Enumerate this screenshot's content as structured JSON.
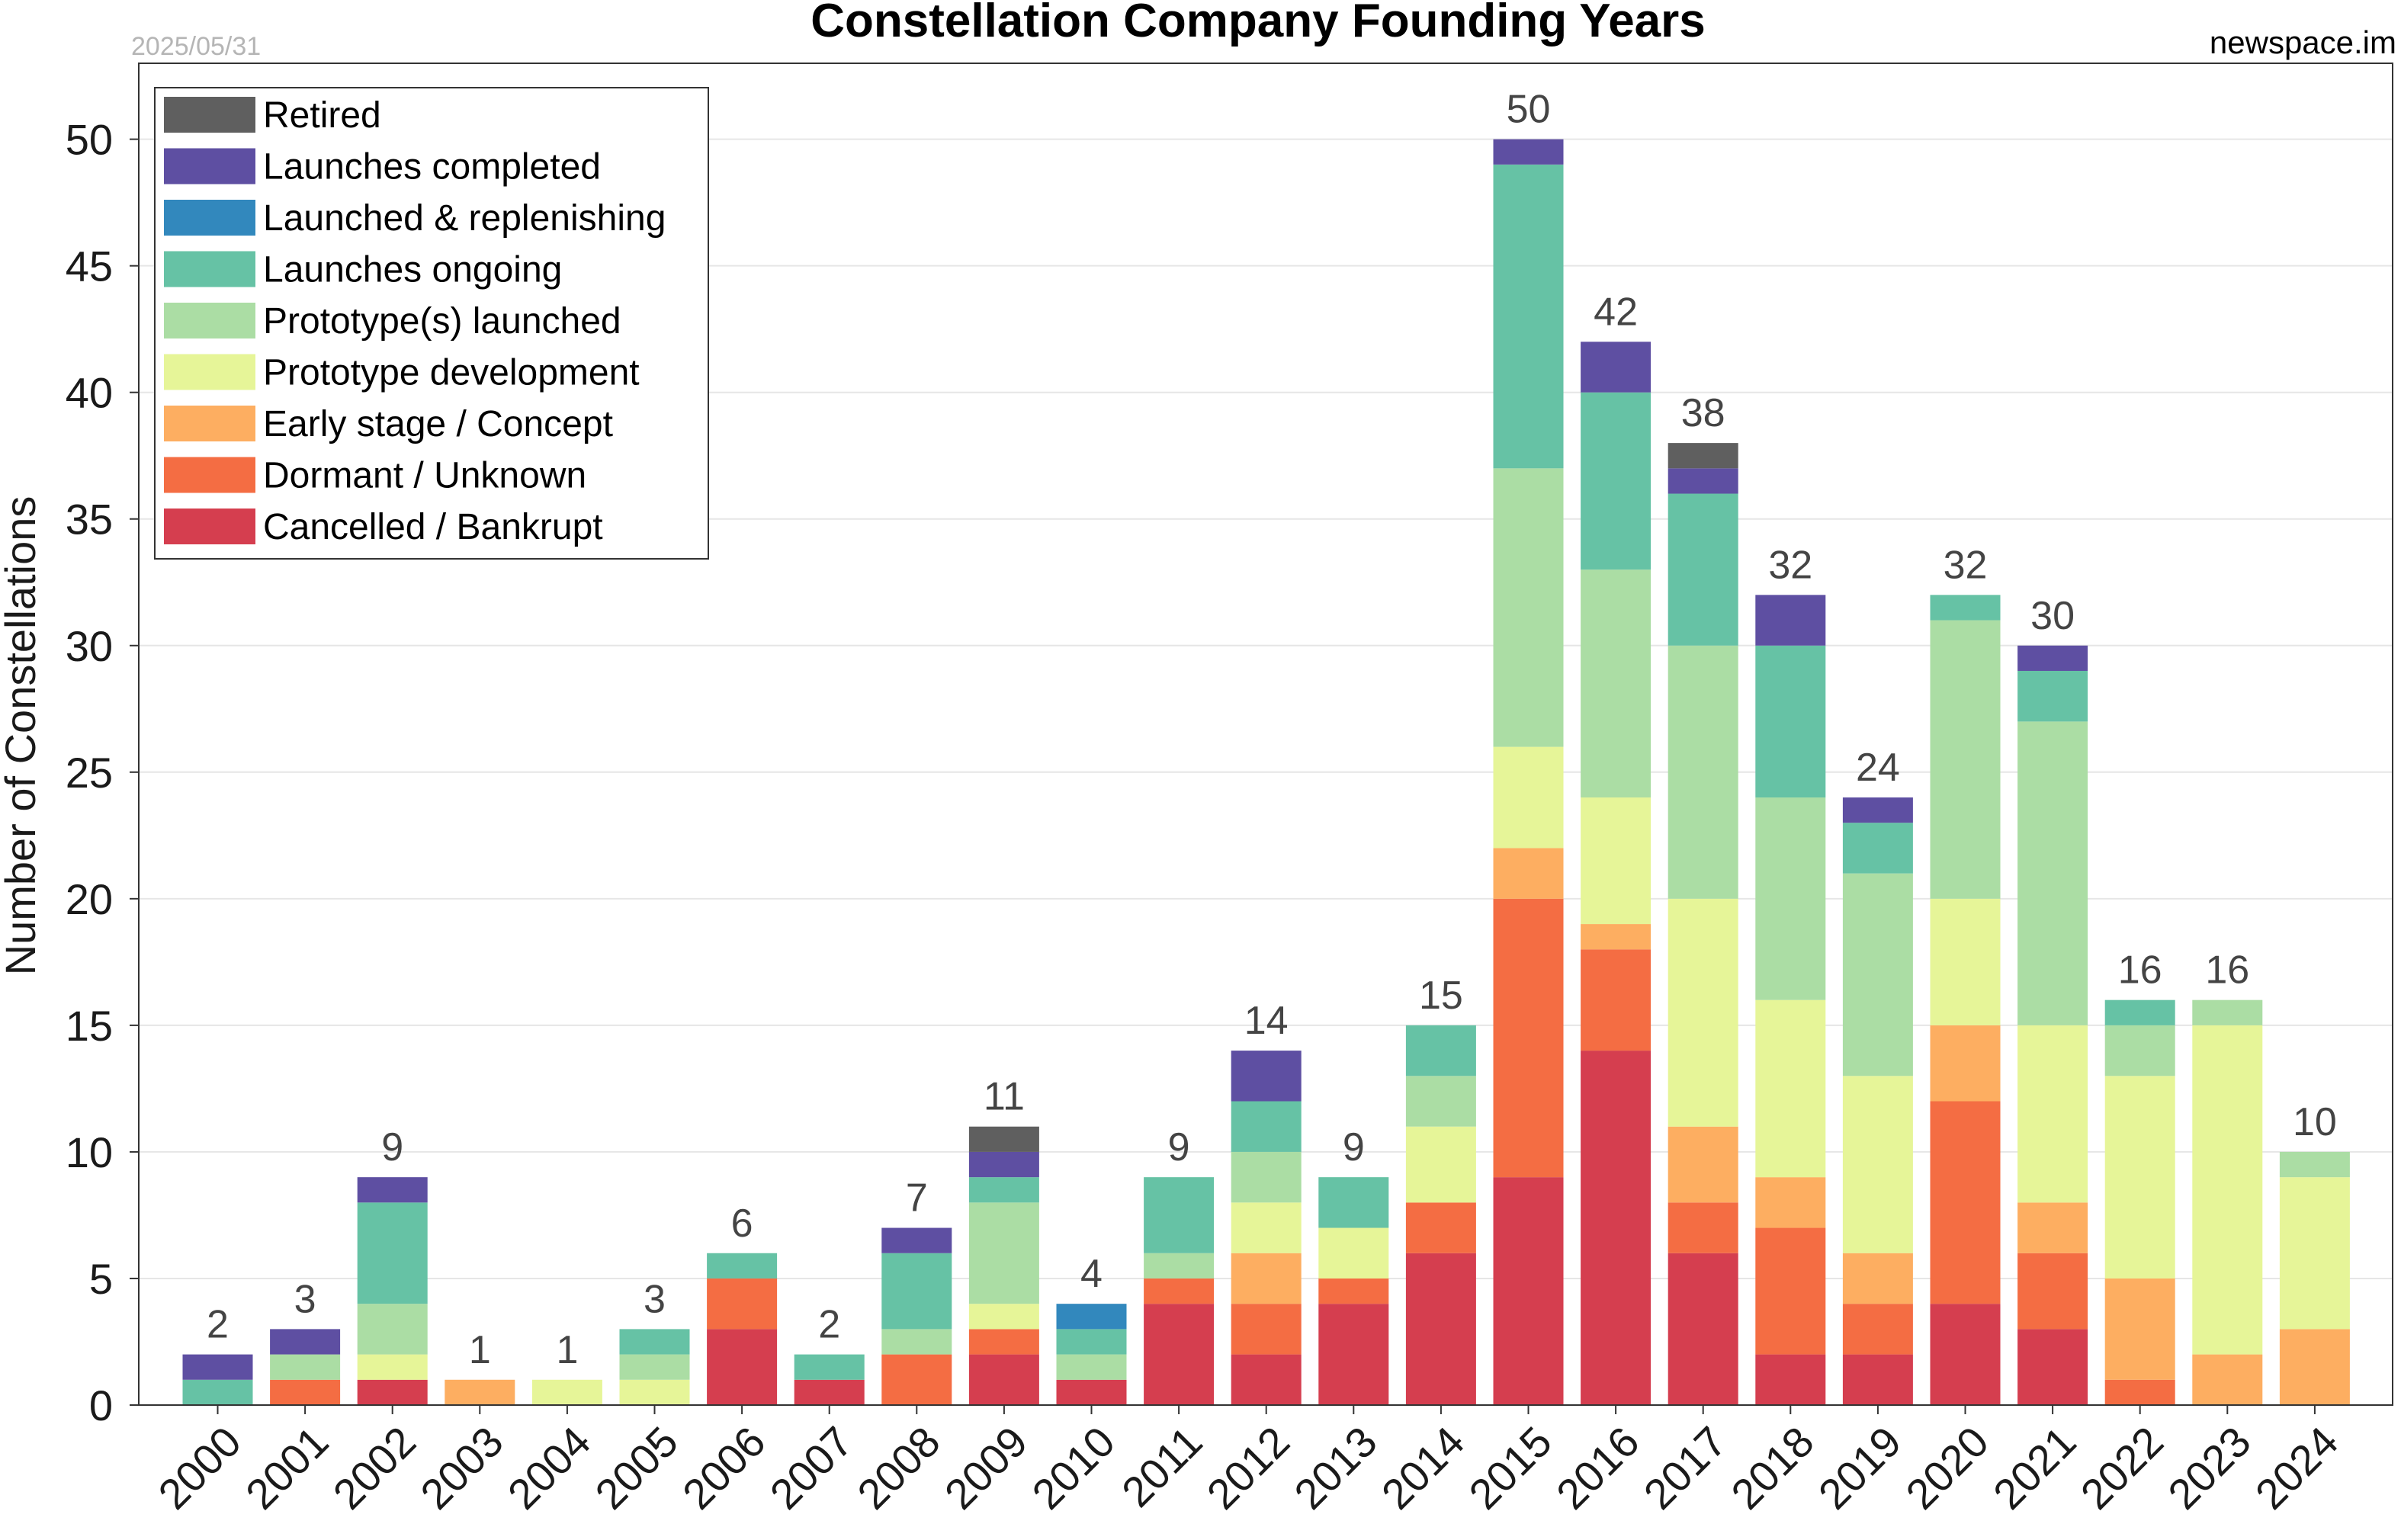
{
  "header": {
    "title": "Constellation Company Founding Years",
    "date": "2025/05/31",
    "source": "newspace.im"
  },
  "chart_data": {
    "type": "bar",
    "stacked": true,
    "title": "Constellation Company Founding Years",
    "xlabel": "",
    "ylabel": "Number of Constellations",
    "ylim": [
      0,
      53
    ],
    "yticks": [
      "0",
      "5",
      "10",
      "15",
      "20",
      "25",
      "30",
      "35",
      "40",
      "45",
      "50"
    ],
    "grid": "horizontal",
    "legend_position": "top-left",
    "categories": [
      "2000",
      "2001",
      "2002",
      "2003",
      "2004",
      "2005",
      "2006",
      "2007",
      "2008",
      "2009",
      "2010",
      "2011",
      "2012",
      "2013",
      "2014",
      "2015",
      "2016",
      "2017",
      "2018",
      "2019",
      "2020",
      "2021",
      "2022",
      "2023",
      "2024"
    ],
    "totals": [
      "2",
      "3",
      "9",
      "1",
      "1",
      "3",
      "6",
      "2",
      "7",
      "11",
      "4",
      "9",
      "14",
      "9",
      "15",
      "50",
      "42",
      "38",
      "32",
      "24",
      "32",
      "30",
      "16",
      "16",
      "10"
    ],
    "series": [
      {
        "name": "Cancelled / Bankrupt",
        "color": "#d53e4f",
        "values": [
          0,
          0,
          1,
          0,
          0,
          0,
          3,
          1,
          0,
          2,
          1,
          4,
          2,
          4,
          6,
          9,
          14,
          6,
          2,
          2,
          4,
          3,
          0,
          0,
          0
        ]
      },
      {
        "name": "Dormant / Unknown",
        "color": "#f46d43",
        "values": [
          0,
          1,
          0,
          0,
          0,
          0,
          2,
          0,
          2,
          1,
          0,
          1,
          2,
          1,
          2,
          11,
          4,
          2,
          5,
          2,
          8,
          3,
          1,
          0,
          0
        ]
      },
      {
        "name": "Early stage / Concept",
        "color": "#fdae61",
        "values": [
          0,
          0,
          0,
          1,
          0,
          0,
          0,
          0,
          0,
          0,
          0,
          0,
          2,
          0,
          0,
          2,
          1,
          3,
          2,
          2,
          3,
          2,
          4,
          2,
          3
        ]
      },
      {
        "name": "Prototype development",
        "color": "#e6f598",
        "values": [
          0,
          0,
          1,
          0,
          1,
          1,
          0,
          0,
          0,
          1,
          0,
          0,
          2,
          2,
          3,
          4,
          5,
          9,
          7,
          7,
          5,
          7,
          8,
          13,
          6
        ]
      },
      {
        "name": "Prototype(s) launched",
        "color": "#abdda4",
        "values": [
          0,
          1,
          2,
          0,
          0,
          1,
          0,
          0,
          1,
          4,
          1,
          1,
          2,
          0,
          2,
          11,
          9,
          10,
          8,
          8,
          11,
          12,
          2,
          1,
          1
        ]
      },
      {
        "name": "Launches ongoing",
        "color": "#66c2a5",
        "values": [
          1,
          0,
          4,
          0,
          0,
          1,
          1,
          1,
          3,
          1,
          1,
          3,
          2,
          2,
          2,
          12,
          7,
          6,
          6,
          2,
          1,
          2,
          1,
          0,
          0
        ]
      },
      {
        "name": "Launched & replenishing",
        "color": "#3288bd",
        "values": [
          0,
          0,
          0,
          0,
          0,
          0,
          0,
          0,
          0,
          0,
          1,
          0,
          0,
          0,
          0,
          0,
          0,
          0,
          0,
          0,
          0,
          0,
          0,
          0,
          0
        ]
      },
      {
        "name": "Launches completed",
        "color": "#5e4fa2",
        "values": [
          1,
          1,
          1,
          0,
          0,
          0,
          0,
          0,
          1,
          1,
          0,
          0,
          2,
          0,
          0,
          1,
          2,
          1,
          2,
          1,
          0,
          1,
          0,
          0,
          0
        ]
      },
      {
        "name": "Retired",
        "color": "#5f5f5f",
        "values": [
          0,
          0,
          0,
          0,
          0,
          0,
          0,
          0,
          0,
          1,
          0,
          0,
          0,
          0,
          0,
          0,
          0,
          1,
          0,
          0,
          0,
          0,
          0,
          0,
          0
        ]
      }
    ]
  }
}
